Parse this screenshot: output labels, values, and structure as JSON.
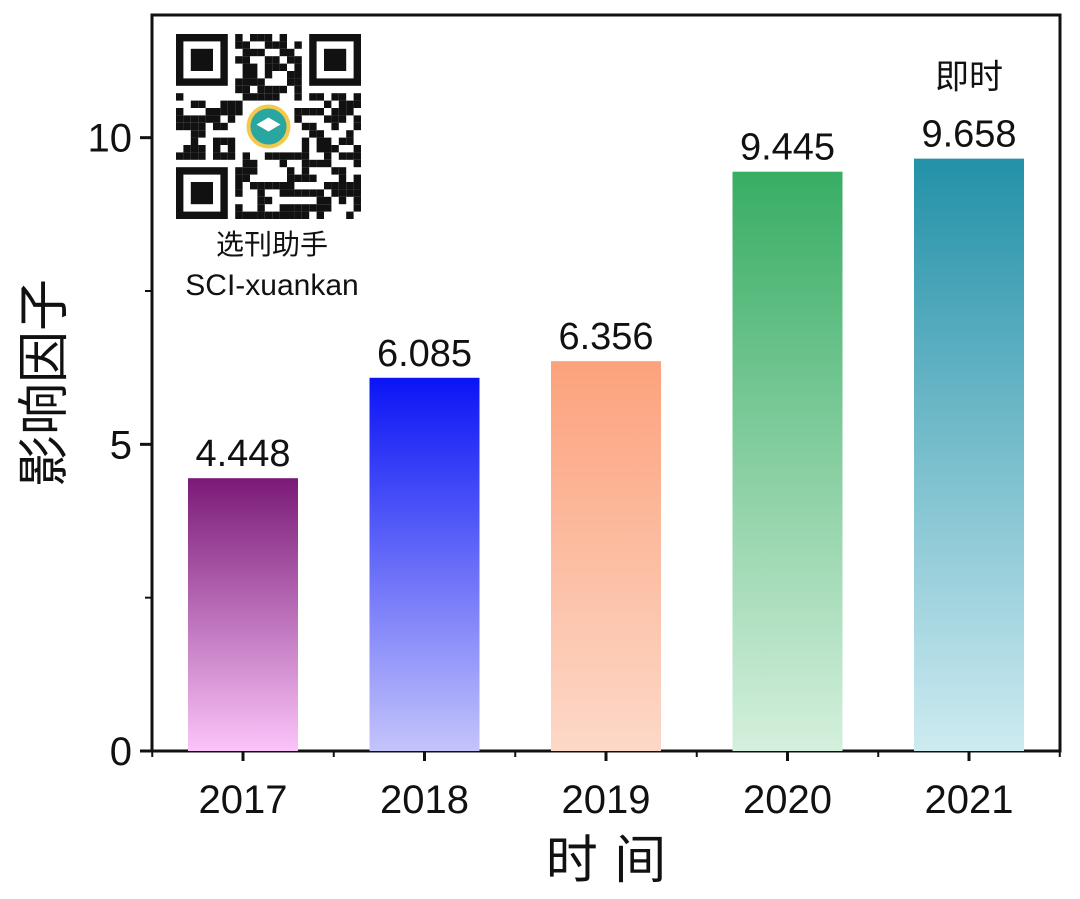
{
  "chart_data": {
    "type": "bar",
    "categories": [
      "2017",
      "2018",
      "2019",
      "2020",
      "2021"
    ],
    "values": [
      4.448,
      6.085,
      6.356,
      9.445,
      9.658
    ],
    "value_labels": [
      "4.448",
      "6.085",
      "6.356",
      "9.445",
      "9.658"
    ],
    "bar_colors": [
      {
        "top": "#7a1a78",
        "bottom": "#fbc4f9"
      },
      {
        "top": "#0a14f5",
        "bottom": "#c4c4fb"
      },
      {
        "top": "#fca27c",
        "bottom": "#fdd8c8"
      },
      {
        "top": "#38ad64",
        "bottom": "#d4f0dd"
      },
      {
        "top": "#2391a8",
        "bottom": "#cdebf1"
      }
    ],
    "xlabel": "时 间",
    "ylabel": "影响因子",
    "ylim": [
      0,
      12
    ],
    "yticks": [
      0,
      5,
      10
    ],
    "annotation": {
      "text": "即时",
      "category": "2021"
    },
    "grid": false
  },
  "watermark": {
    "qr_icon": "qr-code-icon",
    "name_cn": "选刊助手",
    "name_en": "SCI-xuankan"
  }
}
